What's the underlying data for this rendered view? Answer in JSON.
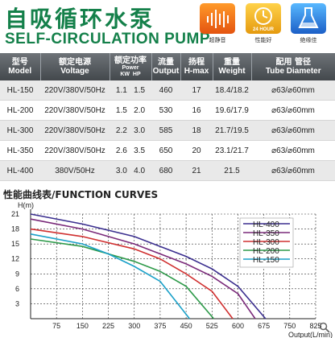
{
  "header": {
    "title_cn": "自吸循环水泵",
    "title_en": "SELF-CIRCULATION PUMP",
    "badges": [
      {
        "icon": "sound-wave-icon",
        "caption": "超静音"
      },
      {
        "icon": "24-hour-icon",
        "caption": "性能好",
        "label": "24 HOUR"
      },
      {
        "icon": "flask-icon",
        "caption": "绝缘佳"
      }
    ]
  },
  "table": {
    "headers": {
      "model_cn": "型号",
      "model_en": "Model",
      "voltage_cn": "额定电源",
      "voltage_en": "Voltage",
      "power_cn": "额定功率",
      "power_en": "Power",
      "power_kw": "KW",
      "power_hp": "HP",
      "output_cn": "流量",
      "output_en": "Output",
      "hmax_cn": "扬程",
      "hmax_en": "H-max",
      "weight_cn": "重量",
      "weight_en": "Weight",
      "tube_cn": "配用 管径",
      "tube_en": "Tube Diameter"
    },
    "rows": [
      {
        "model": "HL-150",
        "voltage": "220V/380V/50Hz",
        "kw": "1.1",
        "hp": "1.5",
        "output": "460",
        "hmax": "17",
        "weight": "18.4/18.2",
        "tube": "⌀63/⌀60mm"
      },
      {
        "model": "HL-200",
        "voltage": "220V/380V/50Hz",
        "kw": "1.5",
        "hp": "2.0",
        "output": "530",
        "hmax": "16",
        "weight": "19.6/17.9",
        "tube": "⌀63/⌀60mm"
      },
      {
        "model": "HL-300",
        "voltage": "220V/380V/50Hz",
        "kw": "2.2",
        "hp": "3.0",
        "output": "585",
        "hmax": "18",
        "weight": "21.7/19.5",
        "tube": "⌀63/⌀60mm"
      },
      {
        "model": "HL-350",
        "voltage": "220V/380V/50Hz",
        "kw": "2.6",
        "hp": "3.5",
        "output": "650",
        "hmax": "20",
        "weight": "23.1/21.7",
        "tube": "⌀63/⌀60mm"
      },
      {
        "model": "HL-400",
        "voltage": "380V/50Hz",
        "kw": "3.0",
        "hp": "4.0",
        "output": "680",
        "hmax": "21",
        "weight": "21.5",
        "tube": "⌀63/⌀60mm"
      }
    ]
  },
  "curves_title": "性能曲线表/FUNCTION CURVES",
  "chart_data": {
    "type": "line",
    "ylabel": "H(m)",
    "xlabel": "Output(L/min)",
    "xlim": [
      0,
      825
    ],
    "ylim": [
      0,
      21
    ],
    "x_ticks": [
      "75",
      "150",
      "225",
      "300",
      "375",
      "450",
      "525",
      "600",
      "675",
      "750",
      "825"
    ],
    "y_ticks": [
      "3",
      "6",
      "9",
      "12",
      "15",
      "18",
      "21"
    ],
    "grid": true,
    "legend_position": "top-right",
    "series": [
      {
        "name": "HL-400",
        "color": "#3b2f8f",
        "points": [
          [
            0,
            21
          ],
          [
            150,
            19
          ],
          [
            300,
            16.5
          ],
          [
            450,
            12.5
          ],
          [
            525,
            10
          ],
          [
            600,
            6.5
          ],
          [
            680,
            0
          ]
        ]
      },
      {
        "name": "HL-350",
        "color": "#7a2a7a",
        "points": [
          [
            0,
            20
          ],
          [
            150,
            18
          ],
          [
            300,
            15
          ],
          [
            450,
            11
          ],
          [
            525,
            8.5
          ],
          [
            600,
            5
          ],
          [
            650,
            0
          ]
        ]
      },
      {
        "name": "HL-300",
        "color": "#d03030",
        "points": [
          [
            0,
            18
          ],
          [
            150,
            16.5
          ],
          [
            300,
            14
          ],
          [
            375,
            12
          ],
          [
            450,
            9
          ],
          [
            525,
            5.5
          ],
          [
            585,
            0
          ]
        ]
      },
      {
        "name": "HL-200",
        "color": "#2e9a4a",
        "points": [
          [
            0,
            16
          ],
          [
            150,
            14.5
          ],
          [
            300,
            11.5
          ],
          [
            375,
            9.5
          ],
          [
            450,
            6.5
          ],
          [
            530,
            0
          ]
        ]
      },
      {
        "name": "HL-150",
        "color": "#1aa0c8",
        "points": [
          [
            0,
            17
          ],
          [
            150,
            15
          ],
          [
            225,
            13
          ],
          [
            300,
            10.5
          ],
          [
            375,
            7.5
          ],
          [
            460,
            0
          ]
        ]
      }
    ]
  }
}
